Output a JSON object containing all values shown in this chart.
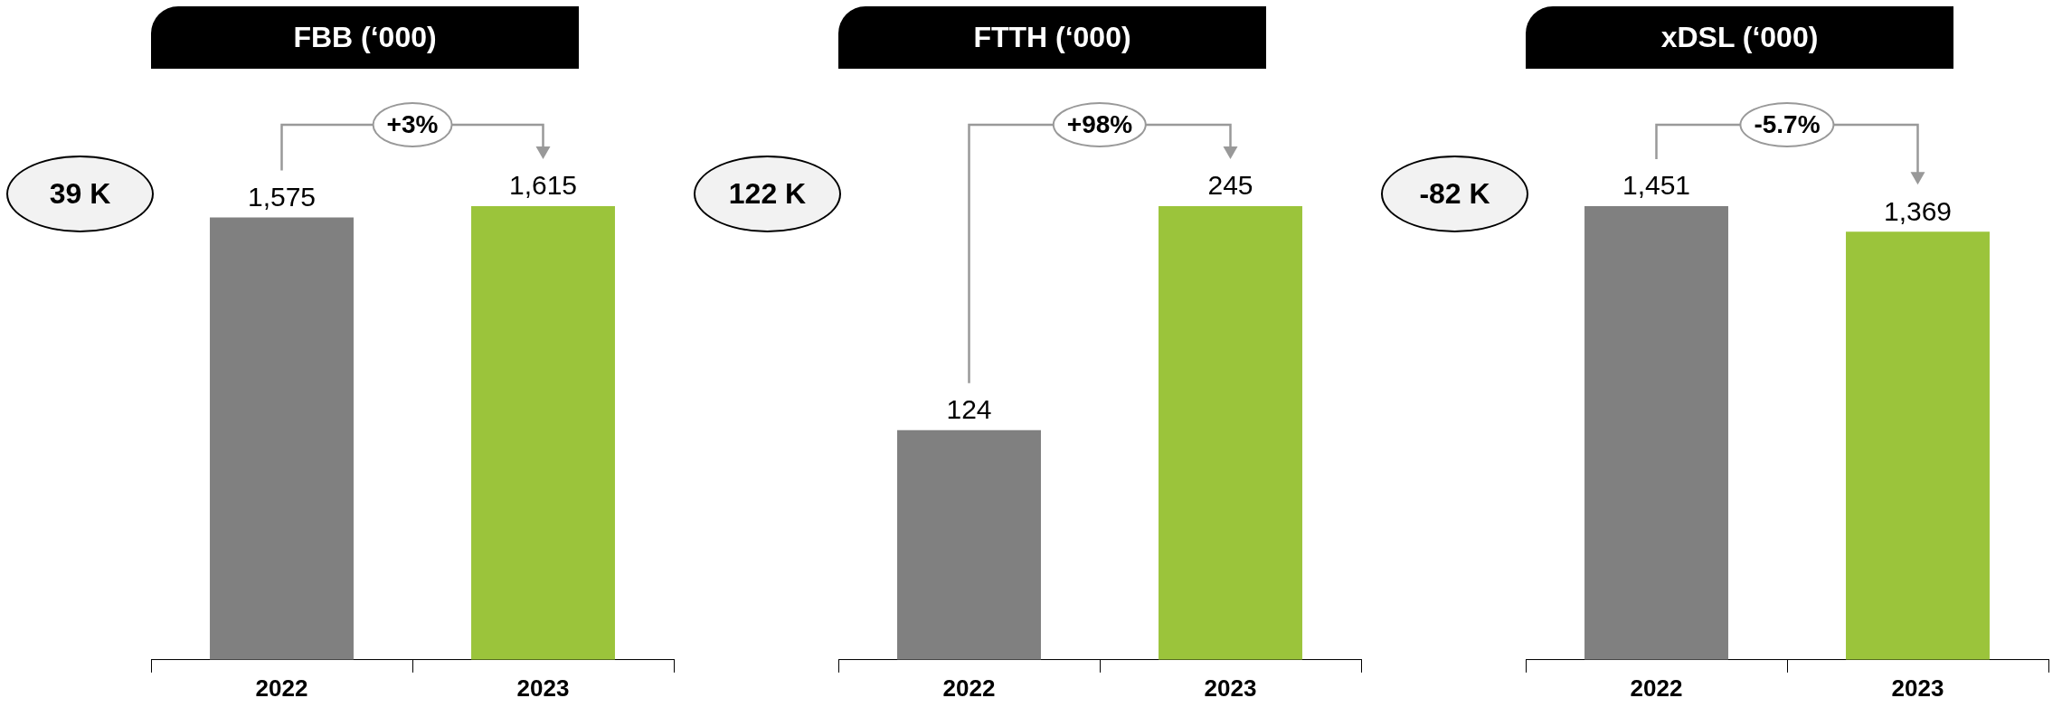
{
  "chart_data": [
    {
      "type": "bar",
      "title": "FBB (‘000)",
      "categories": [
        "2022",
        "2023"
      ],
      "values": [
        1575,
        1615
      ],
      "value_labels": [
        "1,575",
        "1,615"
      ],
      "colors": [
        "#808080",
        "#9bc43b"
      ],
      "tick_labels": "x",
      "annotations": [
        "39 K",
        "+3%"
      ]
    },
    {
      "type": "bar",
      "title": "FTTH (‘000)",
      "categories": [
        "2022",
        "2023"
      ],
      "values": [
        124,
        245
      ],
      "value_labels": [
        "124",
        "245"
      ],
      "colors": [
        "#808080",
        "#9bc43b"
      ],
      "tick_labels": "x",
      "annotations": [
        "122 K",
        "+98%"
      ]
    },
    {
      "type": "bar",
      "title": "xDSL (‘000)",
      "categories": [
        "2022",
        "2023"
      ],
      "values": [
        1451,
        1369
      ],
      "value_labels": [
        "1,451",
        "1,369"
      ],
      "colors": [
        "#808080",
        "#9bc43b"
      ],
      "tick_labels": "x",
      "annotations": [
        "-82 K",
        "-5.7%"
      ]
    }
  ]
}
